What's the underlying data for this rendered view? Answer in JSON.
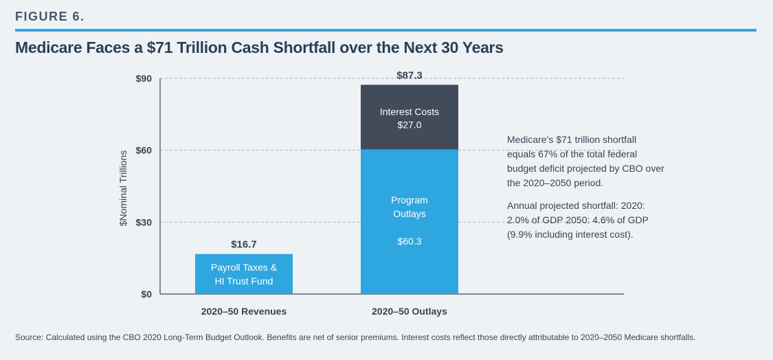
{
  "figure_label": "FIGURE 6.",
  "title": "Medicare Faces a $71 Trillion Cash Shortfall over the Next 30 Years",
  "annotations": [
    "Medicare’s $71 trillion shortfall equals 67% of the total federal budget deficit projected by CBO over the 2020–2050 period.",
    "Annual projected shortfall: 2020: 2.0% of GDP 2050: 4.6% of GDP (9.9% including interest cost)."
  ],
  "source": "Source: Calculated using the CBO 2020 Long-Term Budget Outlook. Benefits are net of senior premiums. Interest costs reflect those directly attributable to 2020–2050 Medicare shortfalls.",
  "colors": {
    "accent": "#2ea6df",
    "interest": "#414b5a",
    "axis": "#354554"
  },
  "chart_data": {
    "type": "bar",
    "stacked": true,
    "categories": [
      "2020–50 Revenues",
      "2020–50 Outlays"
    ],
    "ylabel": "$Nominal Trillions",
    "ylim": [
      0,
      90
    ],
    "yticks": [
      0,
      30,
      60,
      90
    ],
    "ytick_labels": [
      "$0",
      "$30",
      "$60",
      "$90"
    ],
    "grid": true,
    "totals": [
      {
        "category": "2020–50 Revenues",
        "value": 16.7,
        "label": "$16.7"
      },
      {
        "category": "2020–50 Outlays",
        "value": 87.3,
        "label": "$87.3"
      }
    ],
    "segments": [
      {
        "category": "2020–50 Revenues",
        "name": "Payroll Taxes & HI Trust Fund",
        "lines": [
          "Payroll Taxes &",
          "HI Trust Fund"
        ],
        "value": 16.7,
        "value_label": "",
        "color": "#2ea6df"
      },
      {
        "category": "2020–50 Outlays",
        "name": "Program Outlays",
        "lines": [
          "Program",
          "Outlays"
        ],
        "value": 60.3,
        "value_label": "$60.3",
        "color": "#2ea6df"
      },
      {
        "category": "2020–50 Outlays",
        "name": "Interest Costs",
        "lines": [
          "Interest Costs"
        ],
        "value": 27.0,
        "value_label": "$27.0",
        "color": "#414b5a"
      }
    ]
  }
}
